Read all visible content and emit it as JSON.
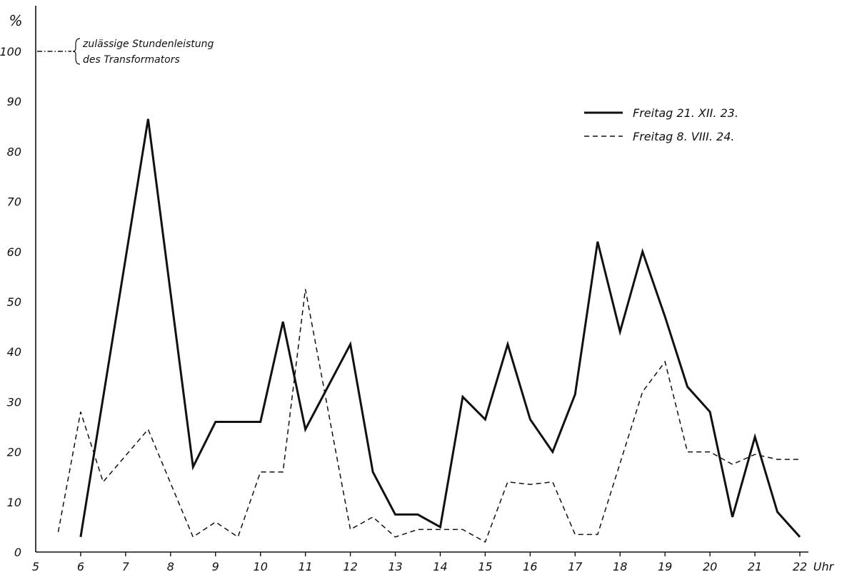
{
  "chart_data": {
    "type": "line",
    "ylabel": "%",
    "xlabel": "Uhr",
    "xlim": [
      5,
      22
    ],
    "ylim": [
      0,
      100
    ],
    "x_ticks": [
      5,
      6,
      7,
      8,
      9,
      10,
      11,
      12,
      13,
      14,
      15,
      16,
      17,
      18,
      19,
      20,
      21,
      22
    ],
    "x_tick_labels": [
      "5",
      "6",
      "7",
      "8",
      "9",
      "10",
      "11",
      "12",
      "13",
      "14",
      "15",
      "16",
      "17",
      "18",
      "19",
      "20",
      "21",
      "22"
    ],
    "y_ticks": [
      0,
      10,
      20,
      30,
      40,
      50,
      60,
      70,
      80,
      90,
      100
    ],
    "y_tick_labels": [
      "0",
      "10",
      "20",
      "30",
      "40",
      "50",
      "60",
      "70",
      "80",
      "90",
      "100"
    ],
    "grid": false,
    "legend_position": "top-right",
    "annotation": {
      "value": 100,
      "line1": "zulässige Stundenleistung",
      "line2": "des Transformators"
    },
    "series": [
      {
        "name": "Freitag 21. XII. 23.",
        "style": "solid",
        "x": [
          6,
          7.5,
          8.5,
          9,
          10,
          10.5,
          11,
          12,
          12.5,
          13,
          13.5,
          14,
          14.5,
          15,
          15.5,
          16,
          16.5,
          17,
          17.5,
          18,
          18.5,
          19,
          19.5,
          20,
          20.5,
          21,
          21.5,
          22
        ],
        "y": [
          3,
          86.5,
          17,
          26,
          26,
          46,
          24.5,
          41.5,
          16,
          7.5,
          7.5,
          5,
          31,
          26.5,
          41.5,
          26.5,
          20,
          31.5,
          62,
          44,
          60,
          47,
          33,
          28,
          7,
          23,
          8,
          3
        ]
      },
      {
        "name": "Freitag 8. VIII. 24.",
        "style": "dashed",
        "x": [
          5.5,
          6,
          6.5,
          7.5,
          8.5,
          9,
          9.5,
          10,
          10.5,
          11,
          12,
          12.5,
          13,
          13.5,
          14,
          14.5,
          15,
          15.5,
          16,
          16.5,
          17,
          17.5,
          18.5,
          19,
          19.5,
          20,
          20.5,
          21,
          21.5,
          22
        ],
        "y": [
          4,
          28,
          14,
          24.5,
          3,
          6,
          3,
          16,
          16,
          52.5,
          4.5,
          7,
          3,
          4.5,
          4.5,
          4.5,
          2,
          14,
          13.5,
          14,
          3.5,
          3.5,
          32,
          38,
          20,
          20,
          17.5,
          19.5,
          18.5,
          18.5
        ]
      }
    ]
  }
}
